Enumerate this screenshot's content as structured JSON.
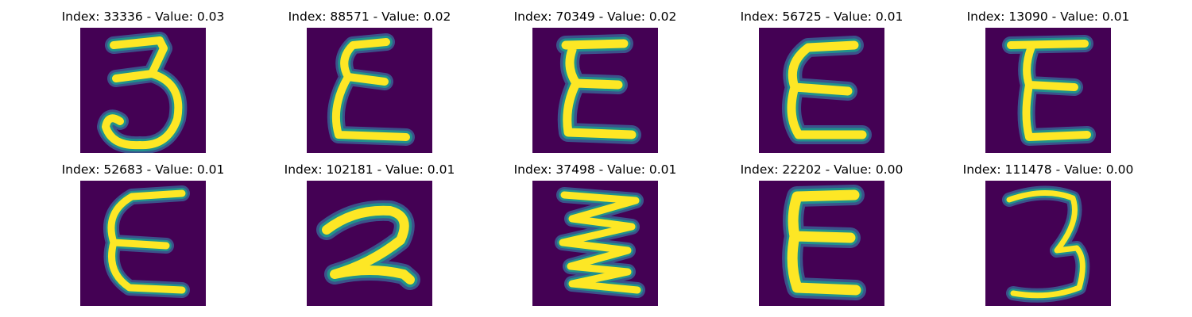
{
  "colors": {
    "background": "#440154",
    "stroke_core": "#fde725",
    "stroke_mid": "#21918c",
    "stroke_edge": "#3b528b"
  },
  "panels": [
    {
      "title": "Index: 33336 - Value: 0.03",
      "glyph": "digit-3"
    },
    {
      "title": "Index: 88571 - Value: 0.02",
      "glyph": "epsilon"
    },
    {
      "title": "Index: 70349 - Value: 0.02",
      "glyph": "epsilon"
    },
    {
      "title": "Index: 56725 - Value: 0.01",
      "glyph": "epsilon"
    },
    {
      "title": "Index: 13090 - Value: 0.01",
      "glyph": "epsilon"
    },
    {
      "title": "Index: 52683 - Value: 0.01",
      "glyph": "epsilon"
    },
    {
      "title": "Index: 102181 - Value: 0.01",
      "glyph": "digit-2"
    },
    {
      "title": "Index: 37498 - Value: 0.01",
      "glyph": "zigzag"
    },
    {
      "title": "Index: 22202 - Value: 0.00",
      "glyph": "epsilon"
    },
    {
      "title": "Index: 111478 - Value: 0.00",
      "glyph": "digit-3"
    }
  ]
}
